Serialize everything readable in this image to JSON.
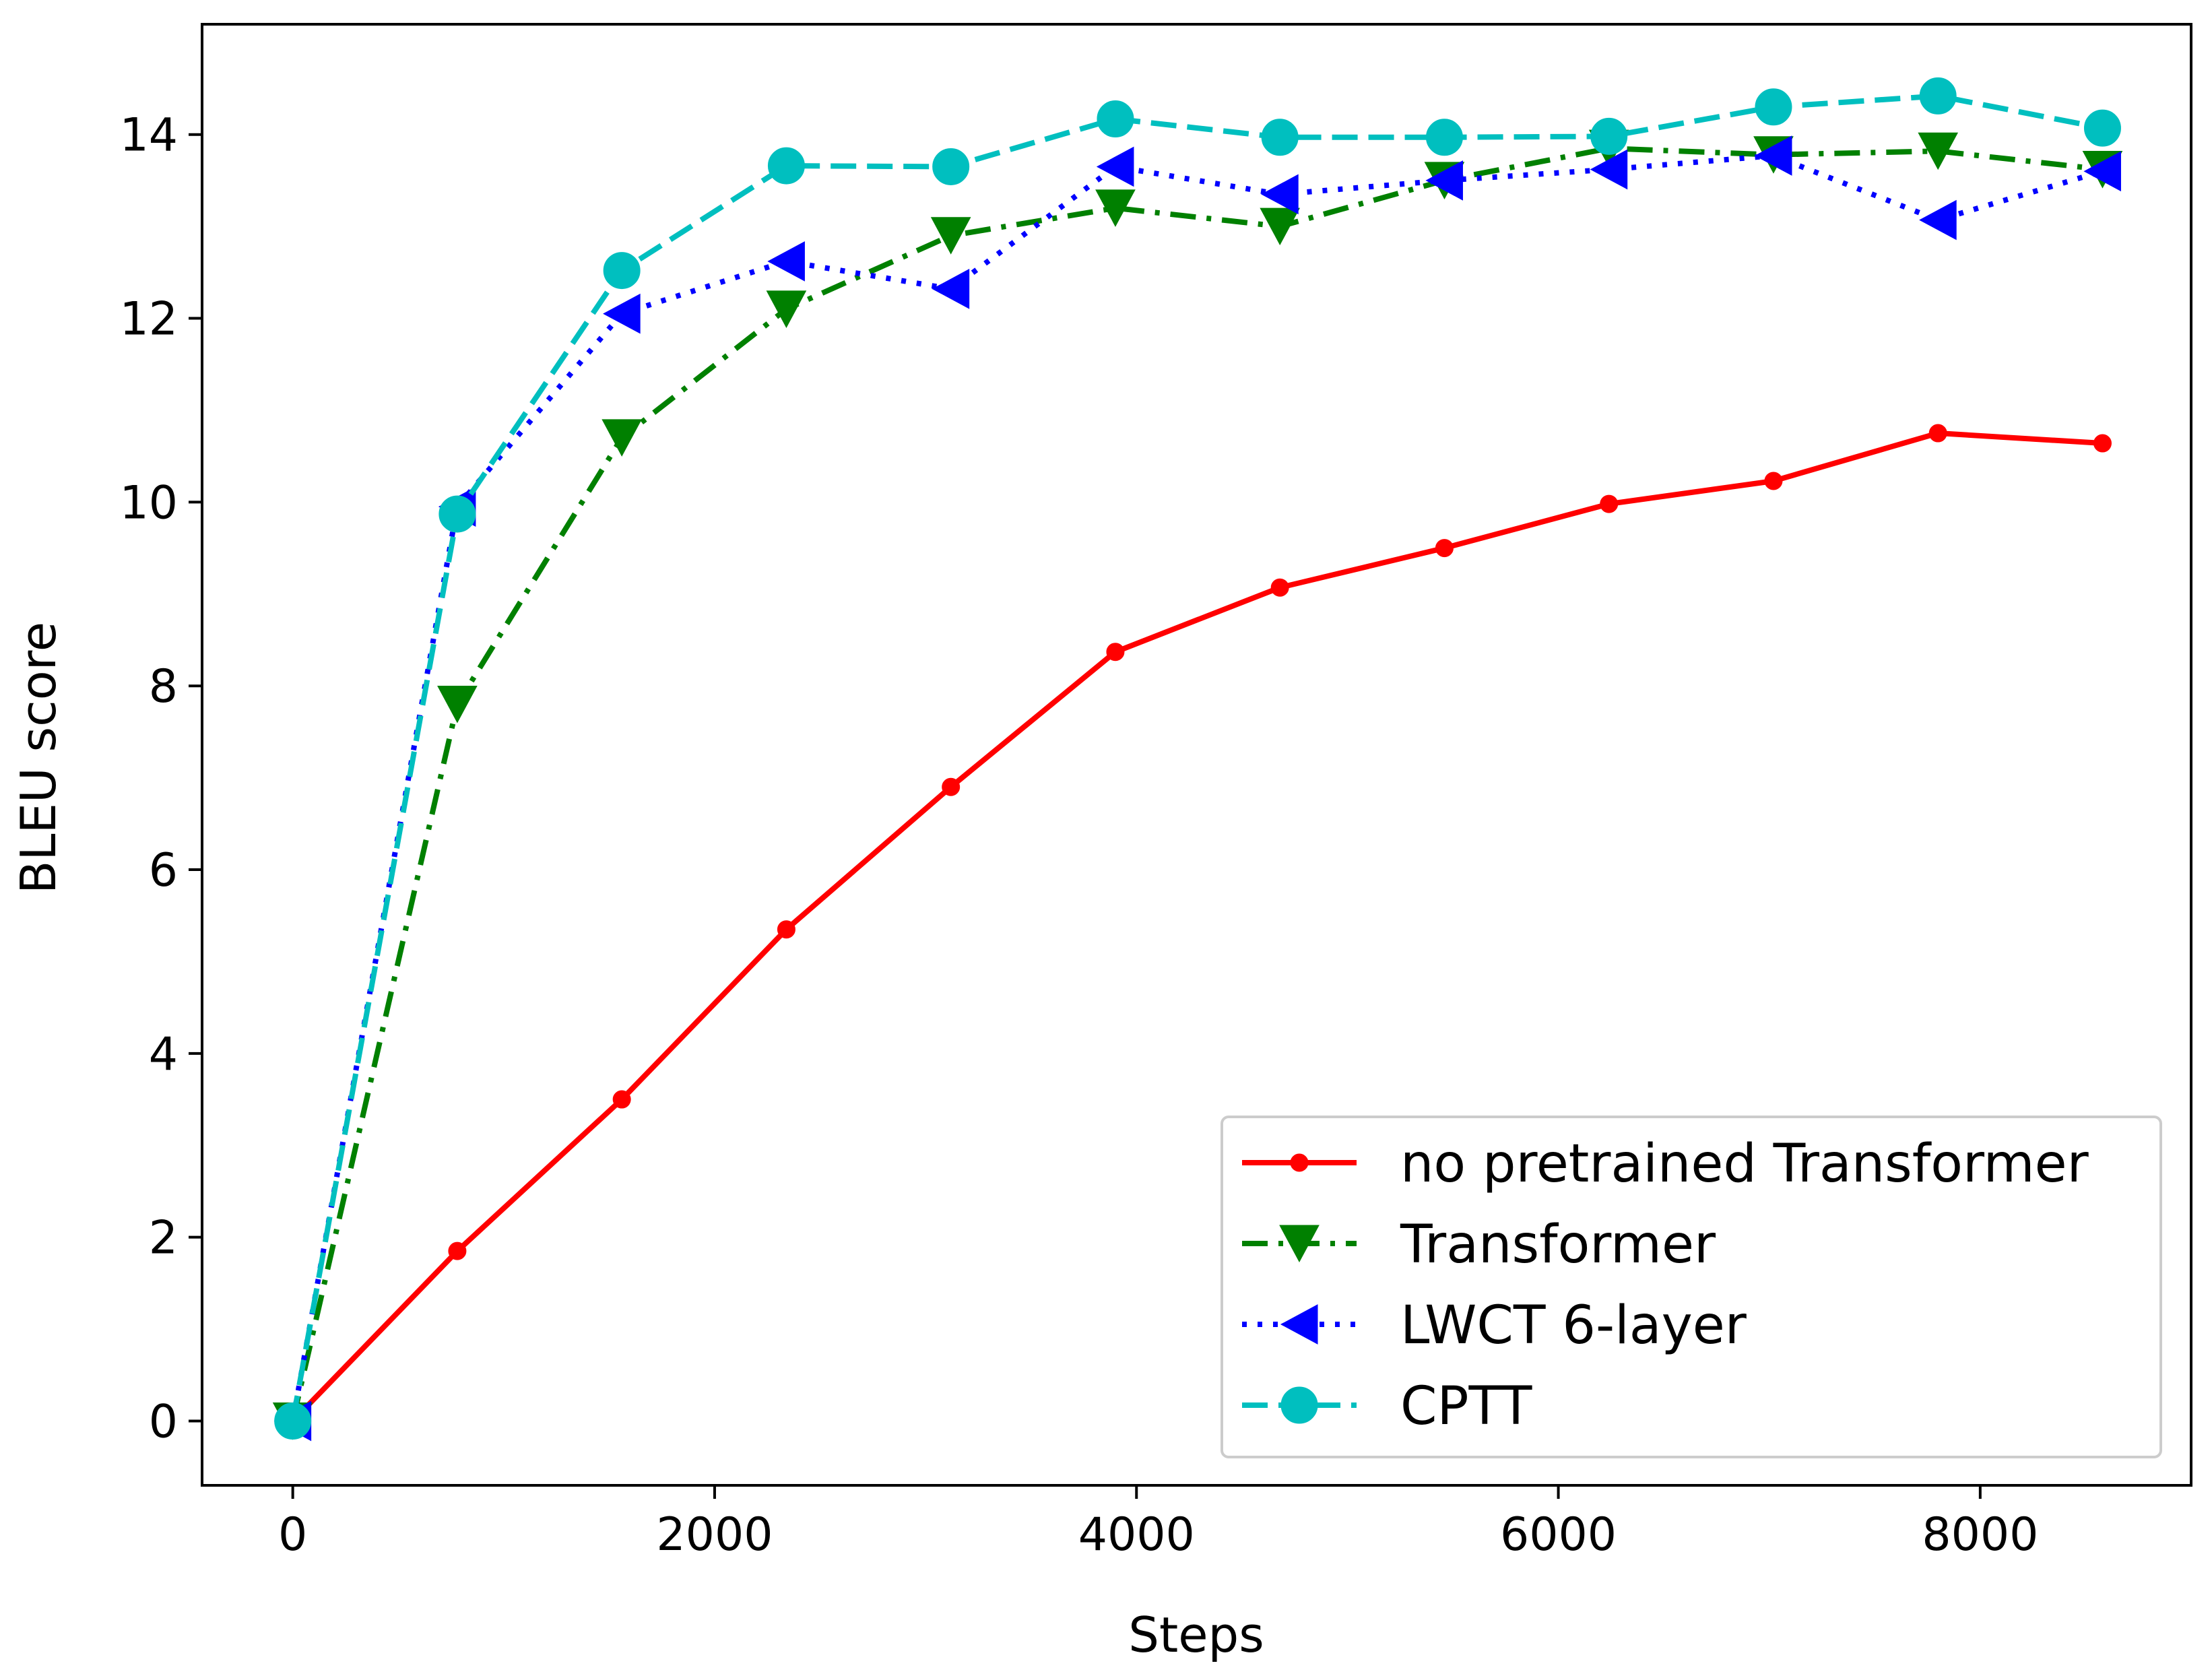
{
  "chart_data": {
    "type": "line",
    "title": "",
    "xlabel": "Steps",
    "ylabel": "BLEU score",
    "xlim": [
      -430,
      9000
    ],
    "ylim": [
      -0.7,
      15.2
    ],
    "grid": false,
    "legend_position": "lower-right",
    "x_ticks": [
      0,
      2000,
      4000,
      6000,
      8000
    ],
    "x_tick_labels": [
      "0",
      "2000",
      "4000",
      "6000",
      "8000"
    ],
    "y_ticks": [
      0,
      2,
      4,
      6,
      8,
      10,
      12,
      14
    ],
    "y_tick_labels": [
      "0",
      "2",
      "4",
      "6",
      "8",
      "10",
      "12",
      "14"
    ],
    "x": [
      0,
      780,
      1560,
      2340,
      3120,
      3900,
      4680,
      5460,
      6240,
      7020,
      7800,
      8580
    ],
    "series": [
      {
        "name": "no pretrained Transformer",
        "color": "#ff0000",
        "dash": "solid",
        "marker": "dot",
        "values": [
          0.0,
          1.85,
          3.5,
          5.35,
          6.9,
          8.37,
          9.07,
          9.5,
          9.98,
          10.23,
          10.75,
          10.64
        ]
      },
      {
        "name": "Transformer",
        "color": "#008000",
        "dash": "dashdot",
        "marker": "triangle-down",
        "values": [
          0.0,
          7.8,
          10.7,
          12.1,
          12.9,
          13.2,
          13.0,
          13.5,
          13.85,
          13.78,
          13.82,
          13.62
        ]
      },
      {
        "name": "LWCT 6-layer",
        "color": "#0000ff",
        "dash": "dotted",
        "marker": "triangle-left",
        "values": [
          0.0,
          9.95,
          12.05,
          12.62,
          12.32,
          13.65,
          13.35,
          13.5,
          13.62,
          13.77,
          13.07,
          13.6
        ]
      },
      {
        "name": "CPTT",
        "color": "#00bfbf",
        "dash": "dashed",
        "marker": "circle",
        "values": [
          0.0,
          9.87,
          12.52,
          13.66,
          13.65,
          14.17,
          13.97,
          13.97,
          13.98,
          14.3,
          14.42,
          14.07
        ]
      }
    ]
  }
}
